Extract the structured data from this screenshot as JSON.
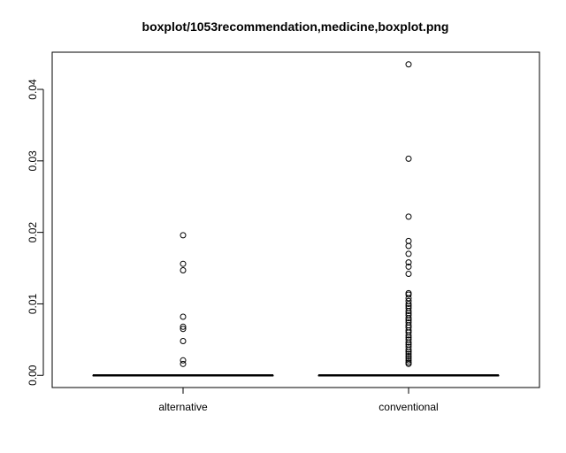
{
  "chart_data": {
    "type": "boxplot",
    "title": "boxplot/1053recommendation,medicine,boxplot.png",
    "xlabel": "",
    "ylabel": "",
    "categories": [
      "alternative",
      "conventional"
    ],
    "y_ticks": [
      0.0,
      0.01,
      0.02,
      0.03,
      0.04
    ],
    "y_tick_labels": [
      "0.00",
      "0.01",
      "0.02",
      "0.03",
      "0.04"
    ],
    "ylim": [
      -0.0017,
      0.0452
    ],
    "grid": false,
    "legend": "none",
    "boxes": [
      {
        "name": "alternative",
        "median": 0.0,
        "q1": 0.0,
        "q3": 0.0,
        "whisker_low": 0.0,
        "whisker_high": 0.0,
        "outliers": [
          0.0196,
          0.0156,
          0.0147,
          0.0082,
          0.0068,
          0.0065,
          0.0048,
          0.0021,
          0.0016
        ]
      },
      {
        "name": "conventional",
        "median": 0.0,
        "q1": 0.0,
        "q3": 0.0,
        "whisker_low": 0.0,
        "whisker_high": 0.0,
        "outliers": [
          0.0435,
          0.0303,
          0.0222,
          0.0188,
          0.0181,
          0.017,
          0.0158,
          0.0152,
          0.0142,
          0.0115,
          0.0113,
          0.0108,
          0.0104,
          0.01,
          0.0097,
          0.0094,
          0.009,
          0.0087,
          0.0084,
          0.008,
          0.0077,
          0.0074,
          0.007,
          0.0067,
          0.0063,
          0.006,
          0.0056,
          0.0053,
          0.005,
          0.0046,
          0.0043,
          0.004,
          0.0036,
          0.0033,
          0.003,
          0.0027,
          0.0024,
          0.0021,
          0.0018,
          0.0016
        ]
      }
    ]
  }
}
